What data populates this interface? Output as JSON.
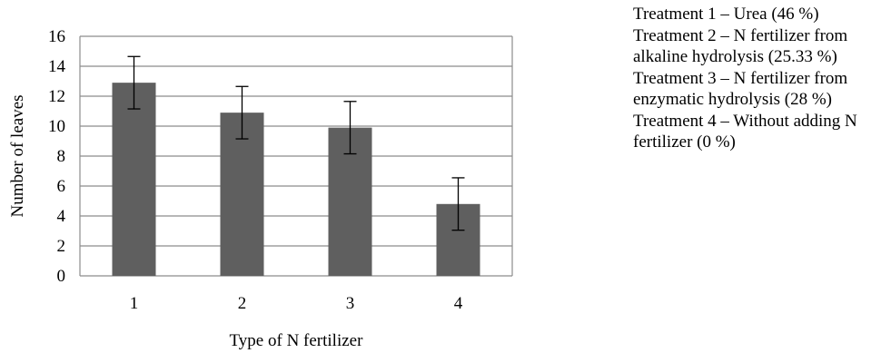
{
  "chart_data": {
    "type": "bar",
    "categories": [
      "1",
      "2",
      "3",
      "4"
    ],
    "values": [
      12.9,
      10.9,
      9.9,
      4.8
    ],
    "error": [
      1.75,
      1.75,
      1.75,
      1.75
    ],
    "xlabel": "Type of N fertilizer",
    "ylabel": "Number of leaves",
    "ylim": [
      0,
      16
    ],
    "yticks": [
      "0",
      "2",
      "4",
      "6",
      "8",
      "10",
      "12",
      "14",
      "16"
    ],
    "grid": true,
    "bar_color": "#5f5f5f",
    "grid_color": "#8c8c8c"
  },
  "legend": {
    "items": [
      "Treatment 1 – Urea (46 %)",
      "Treatment 2 – N fertilizer from alkaline hydrolysis (25.33 %)",
      "Treatment 3 – N fertilizer from enzymatic hydrolysis (28 %)",
      "Treatment 4 – Without adding N fertilizer (0 %)"
    ]
  }
}
